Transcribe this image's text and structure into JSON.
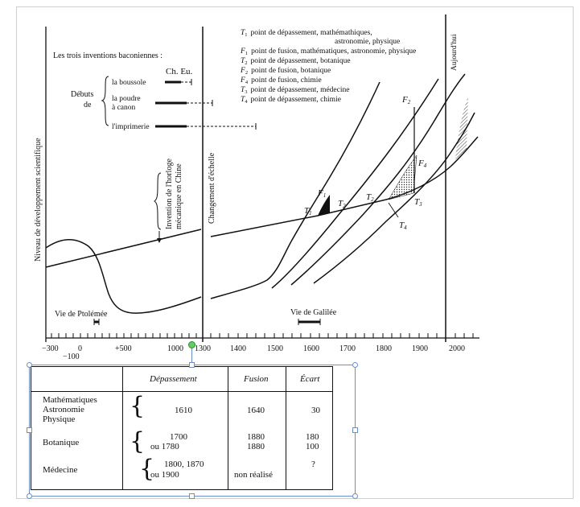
{
  "diagram": {
    "legend_intro": "Les trois inventions baconiennes :",
    "ch_eu": "Ch. Eu.",
    "debuts": "Débuts",
    "de": "de",
    "inventions": [
      "la boussole",
      "la poudre",
      "à canon",
      "l'imprimerie"
    ],
    "legend_lines": [
      {
        "sym": "T",
        "sub": "1",
        "text": "point de dépassement, mathémathiques,"
      },
      {
        "sym": "",
        "sub": "",
        "text": "astronomie, physique"
      },
      {
        "sym": "F",
        "sub": "1",
        "text": "point de fusion, mathématiques, astronomie, physique"
      },
      {
        "sym": "T",
        "sub": "2",
        "text": "point de dépassement, botanique"
      },
      {
        "sym": "F",
        "sub": "2",
        "text": "point de fusion, botanique"
      },
      {
        "sym": "F",
        "sub": "4",
        "text": "point de fusion, chimie"
      },
      {
        "sym": "T",
        "sub": "3",
        "text": "point de dépassement, médecine"
      },
      {
        "sym": "T",
        "sub": "4",
        "text": "point de dépassement, chimie"
      }
    ],
    "y_axis_label": "Niveau de développement scientifique",
    "horloge": [
      "Invention de l'horloge",
      "mécanique en Chine"
    ],
    "changement": "Changement d'échelle",
    "aujourdhui": "Aujourd'hui",
    "vie_ptolemee": "Vie de Ptolémée",
    "vie_galilee": "Vie de Galilée",
    "point_labels": {
      "T1": "T",
      "F1": "F",
      "T2": "T",
      "T2b": "T",
      "T3": "T",
      "T4": "T",
      "F2": "F",
      "F4": "F"
    },
    "x_ticks_left": [
      "−300",
      "0",
      "+500",
      "1000",
      "1300"
    ],
    "x_tick_minus100": "−100",
    "x_ticks_right": [
      "1400",
      "1500",
      "1600",
      "1700",
      "1800",
      "1900",
      "2000"
    ]
  },
  "table": {
    "headers": [
      "Dépassement",
      "Fusion",
      "Écart"
    ],
    "rows": [
      {
        "label": [
          "Mathématiques",
          "Astronomie",
          "Physique"
        ],
        "depassement": [
          "1610"
        ],
        "fusion": [
          "1640"
        ],
        "ecart": [
          "30"
        ]
      },
      {
        "label": [
          "Botanique"
        ],
        "depassement": [
          "1700",
          "ou  1780"
        ],
        "fusion": [
          "1880",
          "1880"
        ],
        "ecart": [
          "180",
          "100"
        ]
      },
      {
        "label": [
          "Médecine"
        ],
        "depassement": [
          "1800, 1870",
          "ou  1900"
        ],
        "fusion": [
          "non réalisé"
        ],
        "ecart": [
          "?"
        ]
      }
    ]
  }
}
